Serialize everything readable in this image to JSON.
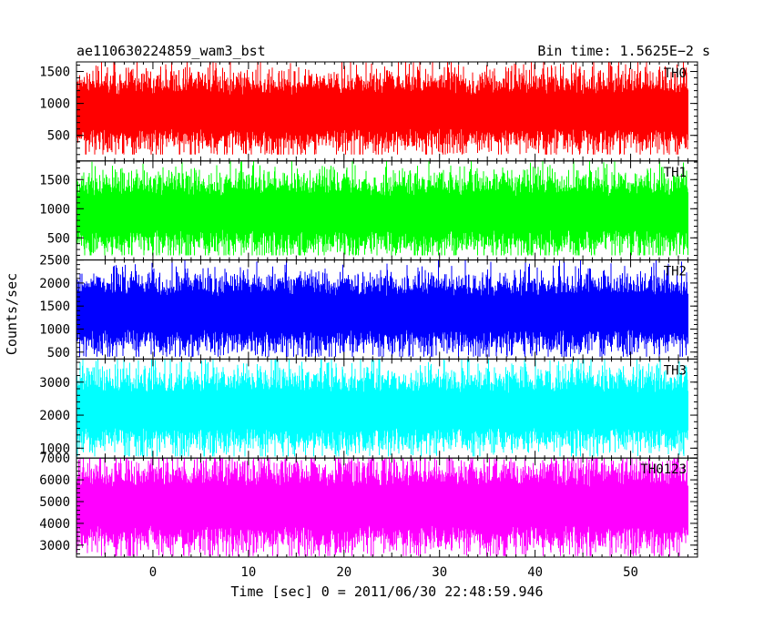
{
  "header": {
    "title": "ae110630224859_wam3_bst",
    "bin_time": "Bin time: 1.5625E−2 s"
  },
  "chart_data": {
    "type": "line",
    "style": "binned light curve (histogram), filled noisy traces",
    "xlabel": "Time [sec] 0 = 2011/06/30 22:48:59.946",
    "ylabel": "Counts/sec",
    "xlim": [
      -8,
      57
    ],
    "data_x_range": [
      -8,
      56
    ],
    "bin_time_s": 0.015625,
    "x_ticks": [
      0,
      10,
      20,
      30,
      40,
      50
    ],
    "grid": false,
    "panels": [
      {
        "name": "TH0",
        "color": "#ff0000",
        "ylim": [
          100,
          1650
        ],
        "y_ticks": [
          500,
          1000,
          1500
        ],
        "level_range": [
          200,
          1650
        ],
        "typical_range": [
          400,
          1350
        ]
      },
      {
        "name": "TH1",
        "color": "#00ff00",
        "ylim": [
          120,
          1820
        ],
        "y_ticks": [
          500,
          1000,
          1500
        ],
        "level_range": [
          200,
          1820
        ],
        "typical_range": [
          400,
          1450
        ]
      },
      {
        "name": "TH2",
        "color": "#0000ff",
        "ylim": [
          350,
          2500
        ],
        "y_ticks": [
          500,
          1000,
          1500,
          2000,
          2500
        ],
        "level_range": [
          400,
          2500
        ],
        "typical_range": [
          700,
          2000
        ]
      },
      {
        "name": "TH3",
        "color": "#00ffff",
        "ylim": [
          700,
          3700
        ],
        "y_ticks": [
          1000,
          2000,
          3000
        ],
        "level_range": [
          750,
          3700
        ],
        "typical_range": [
          1200,
          3100
        ]
      },
      {
        "name": "TH0123",
        "color": "#ff00ff",
        "ylim": [
          2450,
          7000
        ],
        "y_ticks": [
          3000,
          4000,
          5000,
          6000,
          7000
        ],
        "level_range": [
          2500,
          7000
        ],
        "typical_range": [
          3200,
          6400
        ]
      }
    ]
  }
}
